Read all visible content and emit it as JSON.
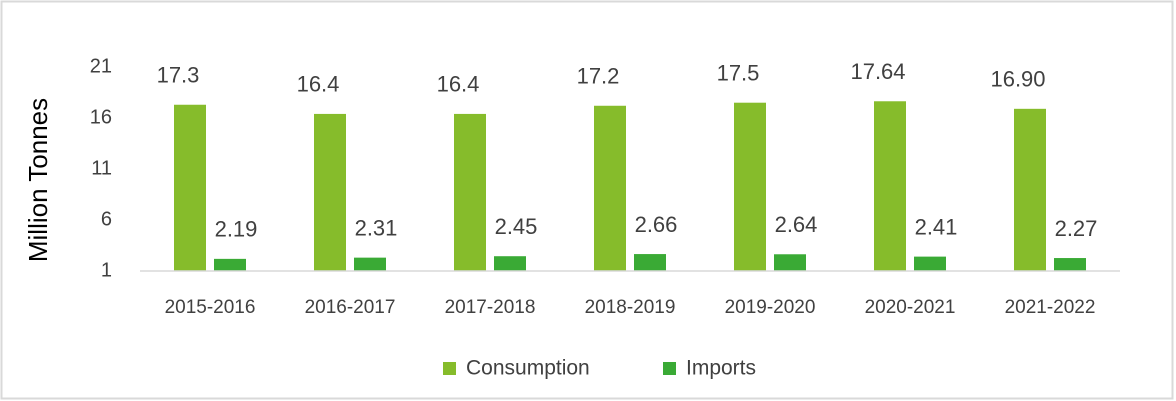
{
  "chart_data": {
    "type": "bar",
    "y_label": "Million Tonnes",
    "categories": [
      "2015-2016",
      "2016-2017",
      "2017-2018",
      "2018-2019",
      "2019-2020",
      "2020-2021",
      "2021-2022"
    ],
    "series": [
      {
        "name": "Consumption",
        "color": "#86bc2b",
        "values": [
          17.3,
          16.4,
          16.4,
          17.2,
          17.5,
          17.64,
          16.9
        ],
        "value_labels": [
          "17.3",
          "16.4",
          "16.4",
          "17.2",
          "17.5",
          "17.64",
          "16.90"
        ]
      },
      {
        "name": "Imports",
        "color": "#3aaa35",
        "values": [
          2.19,
          2.31,
          2.45,
          2.66,
          2.64,
          2.41,
          2.27
        ]
      }
    ],
    "ylim": [
      1,
      21
    ],
    "yticks": [
      1,
      6,
      11,
      16,
      21
    ],
    "grid": false,
    "legend": "bottom"
  }
}
